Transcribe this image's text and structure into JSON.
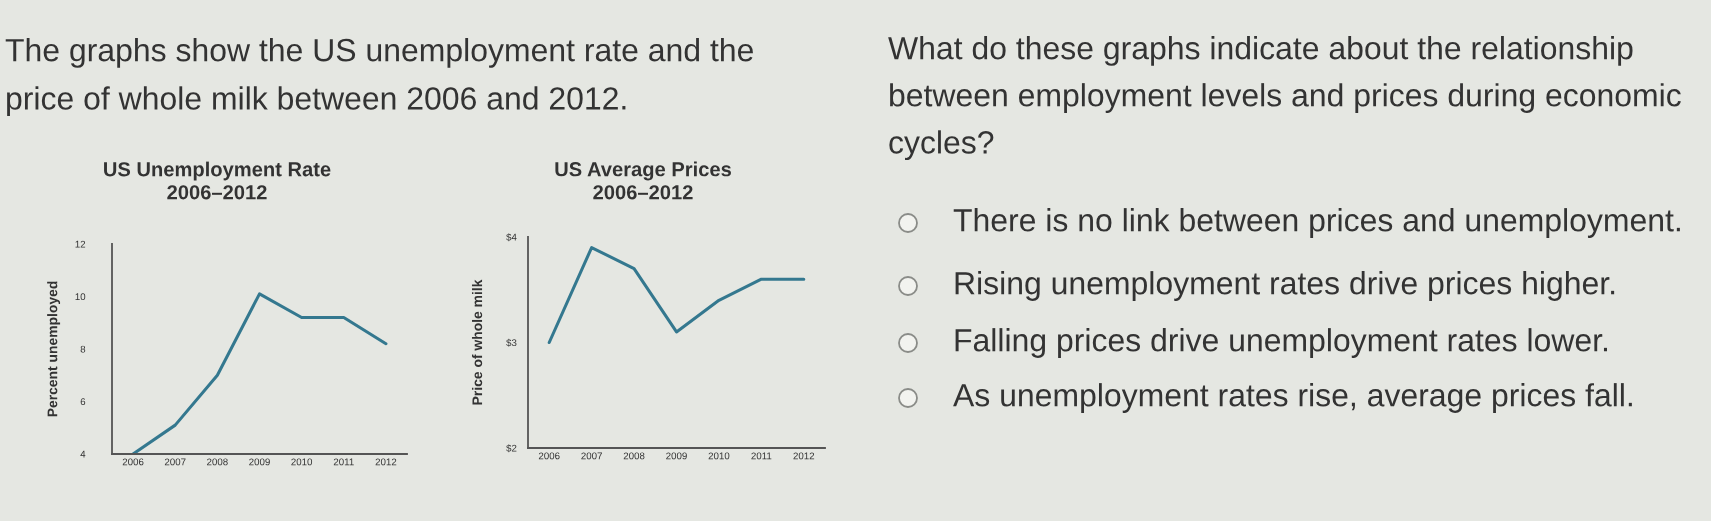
{
  "chart_data": [
    {
      "type": "line",
      "title": "US Unemployment Rate",
      "subtitle": "2006–2012",
      "ylabel": "Percent unemployed",
      "categories": [
        "2006",
        "2007",
        "2008",
        "2009",
        "2010",
        "2011",
        "2012"
      ],
      "series": [
        {
          "color": "#34788f",
          "values": [
            4.0,
            5.1,
            7.0,
            10.1,
            9.2,
            9.2,
            8.2
          ]
        }
      ],
      "ylim": [
        4,
        12
      ],
      "yticks": [
        4,
        6,
        8,
        10,
        12
      ],
      "annotations": [
        "The graphs show the US unemployment rate and the\nprice of whole milk between 2006 and 2012."
      ]
    },
    {
      "type": "line",
      "title": "US Average Prices",
      "subtitle": "2006–2012",
      "ylabel": "Price of whole milk",
      "categories": [
        "2006",
        "2007",
        "2008",
        "2009",
        "2010",
        "2011",
        "2012"
      ],
      "series": [
        {
          "color": "#34788f",
          "values": [
            3.0,
            3.9,
            3.7,
            3.1,
            3.4,
            3.6,
            3.6
          ]
        }
      ],
      "ylim": [
        2,
        4
      ],
      "yticks": [
        {
          "value": 2,
          "label": "$2"
        },
        {
          "value": 3,
          "label": "$3"
        },
        {
          "value": 4,
          "label": "$4"
        }
      ],
      "annotations": [
        "What do these graphs indicate about the relationship\nbetween employment levels and prices during economic\ncycles?",
        "There is no link between prices and unemployment.",
        "Rising unemployment rates drive prices higher.",
        "Falling prices drive unemployment rates lower.",
        "As unemployment rates rise, average prices fall."
      ]
    }
  ]
}
